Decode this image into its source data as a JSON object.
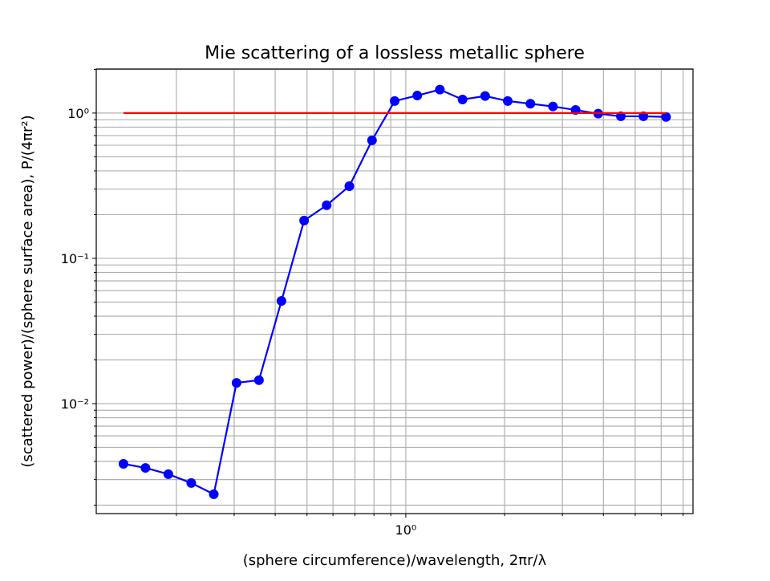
{
  "chart_data": {
    "type": "line",
    "title": "Mie scattering of a lossless metallic sphere",
    "x_label": "(sphere circumference)/wavelength, 2πr/λ",
    "y_label": "(scattered power)/(sphere surface area), P/(4πr²)",
    "x_scale": "log",
    "y_scale": "log",
    "grid": true,
    "xlim": [
      0.114,
      7.5
    ],
    "ylim": [
      0.00175,
      2.01
    ],
    "xticks": [
      {
        "value": 1,
        "label": "10⁰"
      }
    ],
    "xminor_ticks": [
      0.2,
      0.3,
      0.4,
      0.5,
      0.6,
      0.7,
      0.8,
      0.9,
      2,
      3,
      4,
      5,
      6,
      7
    ],
    "yticks": [
      {
        "value": 0.01,
        "label": "10⁻²"
      },
      {
        "value": 0.1,
        "label": "10⁻¹"
      },
      {
        "value": 1,
        "label": "10⁰"
      }
    ],
    "yminor_ticks": [
      0.002,
      0.003,
      0.004,
      0.005,
      0.006,
      0.007,
      0.008,
      0.009,
      0.02,
      0.03,
      0.04,
      0.05,
      0.06,
      0.07,
      0.08,
      0.09,
      0.2,
      0.3,
      0.4,
      0.5,
      0.6,
      0.7,
      0.8,
      0.9,
      2
    ],
    "series": [
      {
        "color": "#0000ff",
        "markers": true,
        "x": [
          0.138,
          0.161,
          0.189,
          0.222,
          0.26,
          0.305,
          0.357,
          0.418,
          0.49,
          0.574,
          0.673,
          0.789,
          0.925,
          1.084,
          1.27,
          1.489,
          1.745,
          2.045,
          2.397,
          2.808,
          3.291,
          3.857,
          4.52,
          5.297,
          6.209
        ],
        "values": [
          0.00385,
          0.00361,
          0.00327,
          0.00284,
          0.00238,
          0.0139,
          0.0145,
          0.0509,
          0.182,
          0.232,
          0.314,
          0.649,
          1.21,
          1.32,
          1.45,
          1.24,
          1.31,
          1.21,
          1.16,
          1.11,
          1.05,
          0.99,
          0.95,
          0.95,
          0.94
        ]
      },
      {
        "color": "#ff0000",
        "markers": false,
        "x": [
          0.138,
          6.209
        ],
        "values": [
          1,
          1
        ]
      }
    ]
  }
}
